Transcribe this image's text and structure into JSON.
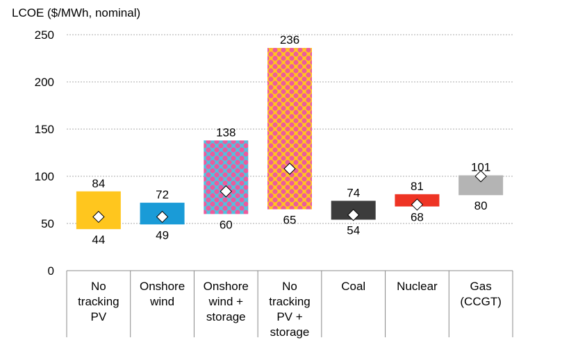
{
  "chart_data": {
    "type": "bar",
    "subtype": "floating-range-with-marker",
    "ylabel": "LCOE ($/MWh, nominal)",
    "ylim": [
      0,
      250
    ],
    "yticks": [
      0,
      50,
      100,
      150,
      200,
      250
    ],
    "grid": true,
    "categories": [
      {
        "lines": [
          "No",
          "tracking",
          "PV"
        ]
      },
      {
        "lines": [
          "Onshore",
          "wind"
        ]
      },
      {
        "lines": [
          "Onshore",
          "wind +",
          "storage"
        ]
      },
      {
        "lines": [
          "No",
          "tracking",
          "PV +",
          "storage"
        ]
      },
      {
        "lines": [
          "Coal"
        ]
      },
      {
        "lines": [
          "Nuclear"
        ]
      },
      {
        "lines": [
          "Gas",
          "(CCGT)"
        ]
      }
    ],
    "low": [
      44,
      49,
      60,
      65,
      54,
      68,
      80
    ],
    "high": [
      84,
      72,
      138,
      236,
      74,
      81,
      101
    ],
    "marker": [
      57,
      57,
      84,
      108,
      59,
      70,
      100
    ],
    "low_labels": [
      "44",
      "49",
      "60",
      "65",
      "54",
      "68",
      "80"
    ],
    "high_labels": [
      "84",
      "72",
      "138",
      "236",
      "74",
      "81",
      "101"
    ],
    "colors": [
      "#FFC61E",
      "#1A9BD7",
      "pattern-blue",
      "pattern-yellow",
      "#3C3C3C",
      "#EE3424",
      "#B4B4B4"
    ],
    "pattern_colors": {
      "blue": "#4FC3E0",
      "yellow": "#FFC61E",
      "dots": "#EC5B9C"
    }
  }
}
